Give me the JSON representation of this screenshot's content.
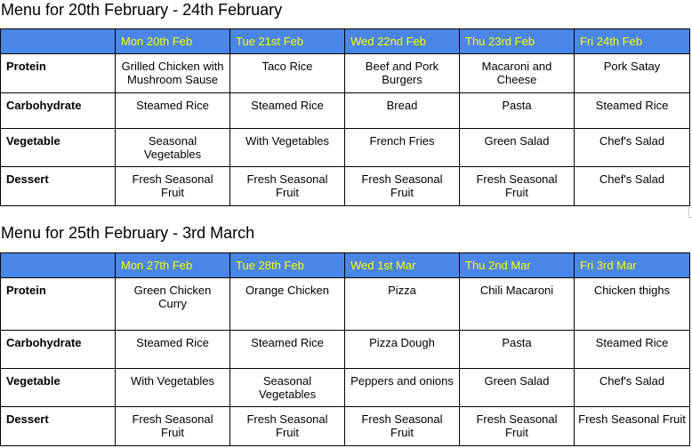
{
  "menus": [
    {
      "title": "Menu for 20th February - 24th February",
      "days": [
        "Mon 20th Feb",
        "Tue 21st Feb",
        "Wed 22nd Feb",
        "Thu 23rd Feb",
        "Fri 24th Feb"
      ],
      "rows": [
        {
          "label": "Protein",
          "cells": [
            "Grilled Chicken with Mushroom Sause",
            "Taco Rice",
            "Beef and Pork Burgers",
            "Macaroni and Cheese",
            "Pork Satay"
          ]
        },
        {
          "label": "Carbohydrate",
          "cells": [
            "Steamed Rice",
            "Steamed Rice",
            "Bread",
            "Pasta",
            "Steamed Rice"
          ]
        },
        {
          "label": "Vegetable",
          "cells": [
            "Seasonal Vegetables",
            "With Vegetables",
            "French Fries",
            "Green Salad",
            "Chef's Salad"
          ]
        },
        {
          "label": "Dessert",
          "cells": [
            "Fresh Seasonal Fruit",
            "Fresh Seasonal Fruit",
            "Fresh Seasonal Fruit",
            "Fresh Seasonal Fruit",
            "Chef's Salad"
          ]
        }
      ]
    },
    {
      "title": "Menu for 25th February - 3rd March",
      "days": [
        "Mon 27th Feb",
        "Tue 28th Feb",
        "Wed 1st Mar",
        "Thu 2nd Mar",
        "Fri 3rd Mar"
      ],
      "rows": [
        {
          "label": "Protein",
          "cells": [
            "Green Chicken Curry",
            "Orange Chicken",
            "Pizza",
            "Chili Macaroni",
            "Chicken thighs"
          ]
        },
        {
          "label": "Carbohydrate",
          "cells": [
            "Steamed Rice",
            "Steamed Rice",
            "Pizza Dough",
            "Pasta",
            "Steamed Rice"
          ]
        },
        {
          "label": "Vegetable",
          "cells": [
            "With Vegetables",
            "Seasonal Vegetables",
            "Peppers and onions",
            "Green Salad",
            "Chef's Salad"
          ]
        },
        {
          "label": "Dessert",
          "cells": [
            "Fresh Seasonal Fruit",
            "Fresh Seasonal Fruit",
            "Fresh Seasonal Fruit",
            "Fresh Seasonal Fruit",
            "Fresh Seasonal Fruit"
          ]
        }
      ]
    }
  ],
  "colors": {
    "header_bg": "#4a86e8",
    "header_text": "#ffff00"
  }
}
